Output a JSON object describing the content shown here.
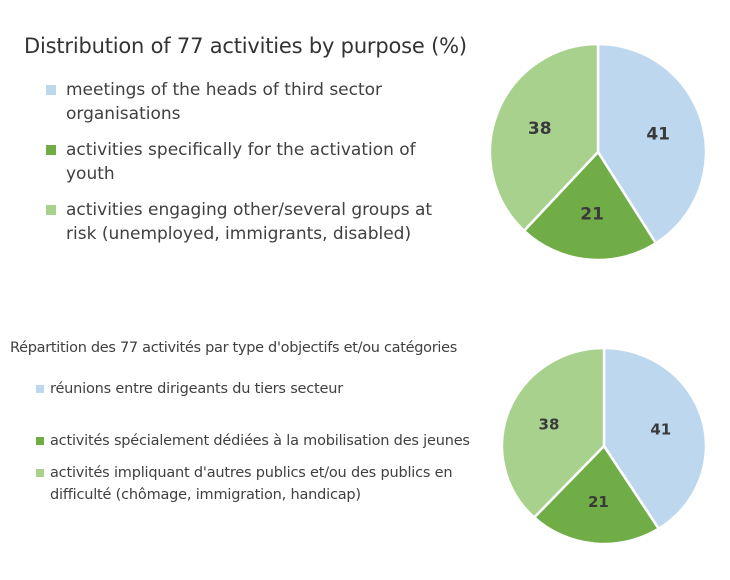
{
  "chart_data": [
    {
      "type": "pie",
      "title": "Distribution of 77 activities by purpose (%)",
      "categories": [
        "meetings of the heads of third sector organisations",
        "activities specifically for the activation of youth",
        "activities engaging other/several groups at risk (unemployed, immigrants, disabled)"
      ],
      "values": [
        41,
        21,
        38
      ],
      "labels": [
        "41",
        "21",
        "38"
      ],
      "colors": [
        "#BDD7EE",
        "#70AD47",
        "#A9D18E"
      ],
      "legend": "left"
    },
    {
      "type": "pie",
      "title": "Répartition des 77 activités par type d'objectifs et/ou catégories",
      "categories": [
        "réunions entre dirigeants du tiers secteur",
        "activités spécialement dédiées à la mobilisation des jeunes",
        "activités impliquant d'autres publics et/ou des publics en difficulté (chômage, immigration, handicap)"
      ],
      "values": [
        41,
        21,
        38
      ],
      "labels": [
        "41",
        "21",
        "38"
      ],
      "colors": [
        "#BDD7EE",
        "#70AD47",
        "#A9D18E"
      ],
      "legend": "left"
    }
  ]
}
